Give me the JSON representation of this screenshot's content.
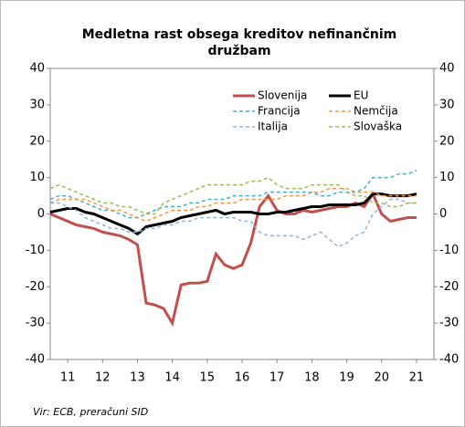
{
  "chart_data": {
    "type": "line",
    "title_lines": [
      "Medletna rast obsega kreditov nefinančnim",
      "družbam"
    ],
    "source": "Vir: ECB, preračuni SID",
    "x": [
      2011,
      2011.25,
      2011.5,
      2011.75,
      2012,
      2012.25,
      2012.5,
      2012.75,
      2013,
      2013.25,
      2013.5,
      2013.75,
      2014,
      2014.25,
      2014.5,
      2014.75,
      2015,
      2015.25,
      2015.5,
      2015.75,
      2016,
      2016.25,
      2016.5,
      2016.75,
      2017,
      2017.25,
      2017.5,
      2017.75,
      2018,
      2018.25,
      2018.5,
      2018.75,
      2019,
      2019.25,
      2019.5,
      2019.75,
      2020,
      2020.25,
      2020.5,
      2020.75,
      2021,
      2021.25,
      2021.5
    ],
    "series": [
      {
        "name": "Slovenija",
        "color": "#c0504d",
        "dashed": false,
        "values": [
          0,
          -1,
          -2,
          -3,
          -3.5,
          -4,
          -5,
          -5.5,
          -6,
          -7,
          -8.5,
          -24.5,
          -25,
          -26,
          -30,
          -19.5,
          -19,
          -19,
          -18.5,
          -11,
          -14,
          -15,
          -14,
          -8,
          2,
          5,
          1,
          0,
          0,
          1,
          0.5,
          1,
          1.5,
          2,
          2,
          3,
          2,
          5.5,
          0,
          -2,
          -1.5,
          -1,
          -1
        ]
      },
      {
        "name": "EU",
        "color": "#000000",
        "dashed": false,
        "values": [
          0.5,
          1,
          1.5,
          1.5,
          0.5,
          0,
          -1,
          -2,
          -3,
          -4,
          -5.5,
          -3.5,
          -3,
          -2.5,
          -2,
          -1,
          -0.5,
          0,
          0.5,
          1,
          0,
          0.5,
          0.5,
          0.5,
          0,
          0,
          0.5,
          0.5,
          1,
          1.5,
          2,
          2,
          2.5,
          2.5,
          2.5,
          2.5,
          3,
          5.5,
          5.5,
          5,
          5,
          5,
          5.5
        ]
      },
      {
        "name": "Francija",
        "color": "#4bacc6",
        "dashed": true,
        "values": [
          4,
          5,
          5,
          4,
          3,
          2,
          1,
          1,
          0,
          -1,
          -1,
          0,
          1,
          2,
          2,
          2,
          3,
          3,
          4,
          4,
          4,
          5,
          5,
          5,
          5,
          6,
          6,
          6,
          6,
          6,
          6,
          5,
          5,
          6,
          6,
          6,
          7,
          10,
          10,
          10,
          11,
          11,
          12
        ]
      },
      {
        "name": "Nemčija",
        "color": "#f79646",
        "dashed": true,
        "values": [
          3,
          4,
          4,
          4,
          4,
          3,
          2,
          1,
          1,
          0,
          -1,
          -2,
          -1,
          0,
          1,
          1,
          1,
          2,
          2,
          3,
          3,
          3,
          4,
          4,
          4,
          4,
          4,
          5,
          5,
          5,
          6,
          6,
          7,
          7,
          7,
          6,
          6,
          6,
          5,
          5,
          5,
          5,
          5
        ]
      },
      {
        "name": "Italija",
        "color": "#95b3d7",
        "dashed": true,
        "values": [
          3,
          3,
          2,
          1,
          -1,
          -2,
          -3,
          -4,
          -4,
          -5,
          -5,
          -4,
          -4,
          -3,
          -3,
          -2,
          -2,
          -1,
          -1,
          -1,
          -1,
          -1,
          -2,
          -2,
          -5,
          -6,
          -6,
          -6,
          -6,
          -7,
          -6,
          -5,
          -7,
          -9,
          -8,
          -6,
          -5,
          0,
          2,
          4,
          4,
          3,
          3
        ]
      },
      {
        "name": "Slovaška",
        "color": "#9bbb59",
        "dashed": true,
        "values": [
          7,
          8,
          7,
          6,
          5,
          4,
          3,
          3,
          2,
          2,
          1,
          0,
          0,
          3,
          4,
          5,
          6,
          7,
          8,
          8,
          8,
          8,
          8,
          9,
          9,
          10,
          8,
          7,
          7,
          7,
          8,
          8,
          8,
          8,
          6,
          5,
          5,
          3,
          3,
          2,
          2,
          3,
          3
        ]
      }
    ],
    "xlim": [
      2011,
      2022
    ],
    "xticks": [
      {
        "value": 2011.5,
        "label": "11"
      },
      {
        "value": 2012.5,
        "label": "12"
      },
      {
        "value": 2013.5,
        "label": "13"
      },
      {
        "value": 2014.5,
        "label": "14"
      },
      {
        "value": 2015.5,
        "label": "15"
      },
      {
        "value": 2016.5,
        "label": "16"
      },
      {
        "value": 2017.5,
        "label": "17"
      },
      {
        "value": 2018.5,
        "label": "18"
      },
      {
        "value": 2019.5,
        "label": "19"
      },
      {
        "value": 2020.5,
        "label": "20"
      },
      {
        "value": 2021.5,
        "label": "21"
      }
    ],
    "ylim": [
      -40,
      40
    ],
    "yticks": [
      -40,
      -30,
      -20,
      -10,
      0,
      10,
      20,
      30,
      40
    ],
    "y2lim": [
      -40,
      40
    ],
    "y2ticks": [
      -40,
      -30,
      -20,
      -10,
      0,
      10,
      20,
      30,
      40
    ],
    "legend": "top-right"
  }
}
